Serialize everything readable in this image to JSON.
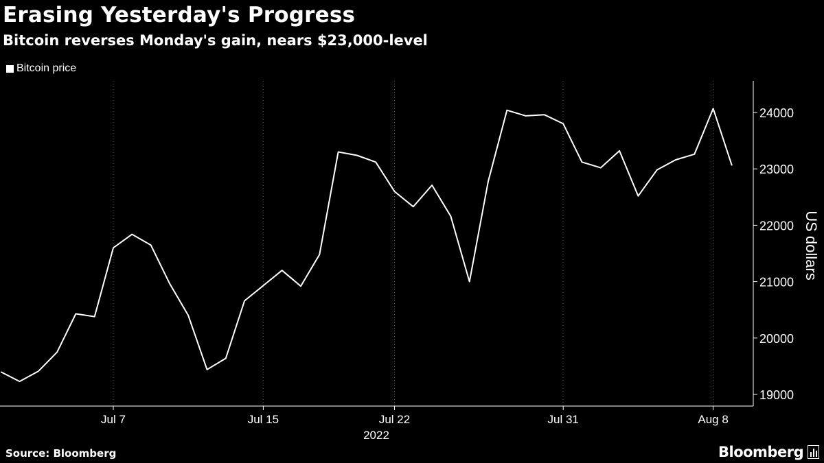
{
  "title": "Erasing Yesterday's Progress",
  "subtitle": "Bitcoin reverses Monday's gain, nears $23,000-level",
  "footer": {
    "source": "Source: Bloomberg",
    "brand": "Bloomberg",
    "brand_icon": "chart-bars-icon"
  },
  "colors": {
    "background": "#000000",
    "line": "#ffffff",
    "grid": "#555555"
  },
  "chart_data": {
    "type": "line",
    "legend": [
      "Bitcoin price"
    ],
    "legend_placement": "top-left",
    "ylabel": "US dollars",
    "xlabel": "",
    "year_label": "2022",
    "ylim": [
      18850,
      24550
    ],
    "y_ticks": [
      19000,
      20000,
      21000,
      22000,
      23000,
      24000
    ],
    "y_axis_side": "right",
    "grid": "vertical-dotted",
    "x_ticks": [
      {
        "label": "Jul 7",
        "date": "2022-07-07"
      },
      {
        "label": "Jul 15",
        "date": "2022-07-15"
      },
      {
        "label": "Jul 22",
        "date": "2022-07-22"
      },
      {
        "label": "Jul 31",
        "date": "2022-07-31"
      },
      {
        "label": "Aug 8",
        "date": "2022-08-08"
      }
    ],
    "series": [
      {
        "name": "Bitcoin price",
        "points": [
          [
            "2022-07-01",
            19400
          ],
          [
            "2022-07-02",
            19230
          ],
          [
            "2022-07-03",
            19410
          ],
          [
            "2022-07-04",
            19750
          ],
          [
            "2022-07-05",
            20430
          ],
          [
            "2022-07-06",
            20380
          ],
          [
            "2022-07-07",
            21600
          ],
          [
            "2022-07-08",
            21840
          ],
          [
            "2022-07-09",
            21650
          ],
          [
            "2022-07-10",
            20970
          ],
          [
            "2022-07-11",
            20400
          ],
          [
            "2022-07-12",
            19440
          ],
          [
            "2022-07-13",
            19640
          ],
          [
            "2022-07-14",
            20660
          ],
          [
            "2022-07-15",
            20930
          ],
          [
            "2022-07-16",
            21200
          ],
          [
            "2022-07-17",
            20920
          ],
          [
            "2022-07-18",
            21480
          ],
          [
            "2022-07-19",
            23300
          ],
          [
            "2022-07-20",
            23240
          ],
          [
            "2022-07-21",
            23120
          ],
          [
            "2022-07-22",
            22600
          ],
          [
            "2022-07-23",
            22330
          ],
          [
            "2022-07-24",
            22710
          ],
          [
            "2022-07-25",
            22160
          ],
          [
            "2022-07-26",
            21000
          ],
          [
            "2022-07-27",
            22780
          ],
          [
            "2022-07-28",
            24040
          ],
          [
            "2022-07-29",
            23940
          ],
          [
            "2022-07-30",
            23960
          ],
          [
            "2022-07-31",
            23800
          ],
          [
            "2022-08-01",
            23120
          ],
          [
            "2022-08-02",
            23020
          ],
          [
            "2022-08-03",
            23320
          ],
          [
            "2022-08-04",
            22520
          ],
          [
            "2022-08-05",
            22980
          ],
          [
            "2022-08-06",
            23160
          ],
          [
            "2022-08-07",
            23260
          ],
          [
            "2022-08-08",
            24070
          ],
          [
            "2022-08-09",
            23060
          ]
        ]
      }
    ]
  }
}
